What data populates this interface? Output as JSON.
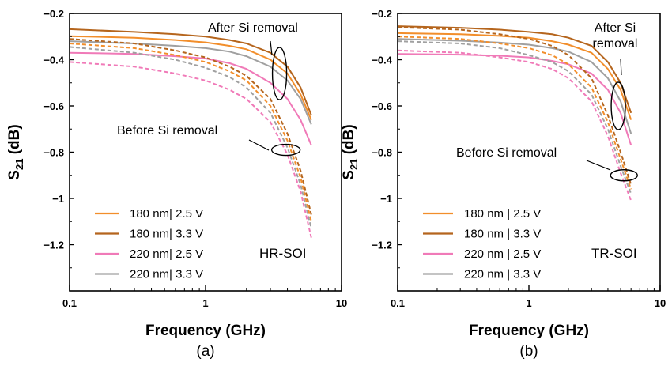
{
  "colors": {
    "orange": "#f28e2b",
    "brown": "#b5651d",
    "pink": "#f07ab8",
    "gray": "#a0a0a0",
    "axis": "#000000"
  },
  "chart_data": [
    {
      "type": "line",
      "caption": "(a)",
      "xlabel": "Frequency (GHz)",
      "ylabel": "S21 (dB)",
      "ylabel_main": "S",
      "ylabel_sub": "21",
      "ylabel_rest": " (dB)",
      "xscale": "log",
      "xlim": [
        0.1,
        10
      ],
      "ylim": [
        -1.4,
        -0.2
      ],
      "xticks": [
        0.1,
        1,
        10
      ],
      "xtick_labels": [
        "0.1",
        "1",
        "10"
      ],
      "yticks": [
        -0.2,
        -0.4,
        -0.6,
        -0.8,
        -1,
        -1.2
      ],
      "ytick_labels": [
        "−0.2",
        "−0.4",
        "−0.6",
        "−0.8",
        "−1",
        "−1.2"
      ],
      "label": "HR-SOI",
      "legend_position": "bottom-left",
      "legend": [
        {
          "text": "180 nm| 2.5 V",
          "color": "#f28e2b"
        },
        {
          "text": "180 nm| 3.3 V",
          "color": "#b5651d"
        },
        {
          "text": "220 nm| 2.5 V",
          "color": "#f07ab8"
        },
        {
          "text": "220 nm| 3.3 V",
          "color": "#a0a0a0"
        }
      ],
      "annotations": [
        {
          "text": "After Si removal",
          "ellipse": {
            "x": 3.5,
            "y": -0.46
          }
        },
        {
          "text": "Before Si removal",
          "ellipse": {
            "x": 3.9,
            "y": -0.79
          }
        }
      ],
      "series": [
        {
          "color": "#b5651d",
          "style": "solid",
          "points": [
            [
              0.1,
              -0.268
            ],
            [
              0.3,
              -0.28
            ],
            [
              0.6,
              -0.29
            ],
            [
              1,
              -0.3
            ],
            [
              1.5,
              -0.315
            ],
            [
              2,
              -0.33
            ],
            [
              3,
              -0.37
            ],
            [
              4,
              -0.43
            ],
            [
              5,
              -0.52
            ],
            [
              6,
              -0.64
            ]
          ]
        },
        {
          "color": "#f28e2b",
          "style": "solid",
          "points": [
            [
              0.1,
              -0.298
            ],
            [
              0.3,
              -0.305
            ],
            [
              0.6,
              -0.315
            ],
            [
              1,
              -0.325
            ],
            [
              1.5,
              -0.34
            ],
            [
              2,
              -0.355
            ],
            [
              3,
              -0.4
            ],
            [
              4,
              -0.46
            ],
            [
              5,
              -0.55
            ],
            [
              6,
              -0.66
            ]
          ]
        },
        {
          "color": "#a0a0a0",
          "style": "solid",
          "points": [
            [
              0.1,
              -0.32
            ],
            [
              0.3,
              -0.33
            ],
            [
              0.6,
              -0.34
            ],
            [
              1,
              -0.35
            ],
            [
              1.5,
              -0.365
            ],
            [
              2,
              -0.385
            ],
            [
              3,
              -0.43
            ],
            [
              4,
              -0.49
            ],
            [
              5,
              -0.57
            ],
            [
              6,
              -0.68
            ]
          ]
        },
        {
          "color": "#f07ab8",
          "style": "solid",
          "points": [
            [
              0.1,
              -0.37
            ],
            [
              0.3,
              -0.375
            ],
            [
              0.6,
              -0.385
            ],
            [
              1,
              -0.395
            ],
            [
              1.5,
              -0.415
            ],
            [
              2,
              -0.44
            ],
            [
              3,
              -0.5
            ],
            [
              4,
              -0.57
            ],
            [
              5,
              -0.66
            ],
            [
              6,
              -0.77
            ]
          ]
        },
        {
          "color": "#b5651d",
          "style": "dashed",
          "points": [
            [
              0.1,
              -0.31
            ],
            [
              0.3,
              -0.33
            ],
            [
              0.6,
              -0.36
            ],
            [
              1,
              -0.39
            ],
            [
              1.5,
              -0.43
            ],
            [
              2,
              -0.47
            ],
            [
              3,
              -0.57
            ],
            [
              4,
              -0.72
            ],
            [
              5,
              -0.88
            ],
            [
              6,
              -1.07
            ]
          ]
        },
        {
          "color": "#f28e2b",
          "style": "dashed",
          "points": [
            [
              0.1,
              -0.33
            ],
            [
              0.3,
              -0.35
            ],
            [
              0.6,
              -0.38
            ],
            [
              1,
              -0.41
            ],
            [
              1.5,
              -0.45
            ],
            [
              2,
              -0.49
            ],
            [
              3,
              -0.6
            ],
            [
              4,
              -0.75
            ],
            [
              5,
              -0.91
            ],
            [
              6,
              -1.1
            ]
          ]
        },
        {
          "color": "#a0a0a0",
          "style": "dashed",
          "points": [
            [
              0.1,
              -0.345
            ],
            [
              0.3,
              -0.37
            ],
            [
              0.6,
              -0.4
            ],
            [
              1,
              -0.435
            ],
            [
              1.5,
              -0.475
            ],
            [
              2,
              -0.52
            ],
            [
              3,
              -0.63
            ],
            [
              4,
              -0.78
            ],
            [
              5,
              -0.94
            ],
            [
              6,
              -1.13
            ]
          ]
        },
        {
          "color": "#f07ab8",
          "style": "dashed",
          "points": [
            [
              0.1,
              -0.41
            ],
            [
              0.3,
              -0.43
            ],
            [
              0.6,
              -0.46
            ],
            [
              1,
              -0.49
            ],
            [
              1.5,
              -0.53
            ],
            [
              2,
              -0.57
            ],
            [
              3,
              -0.67
            ],
            [
              4,
              -0.81
            ],
            [
              5,
              -0.97
            ],
            [
              6,
              -1.17
            ]
          ]
        }
      ]
    },
    {
      "type": "line",
      "caption": "(b)",
      "xlabel": "Frequency (GHz)",
      "ylabel": "S21 (dB)",
      "ylabel_main": "S",
      "ylabel_sub": "21",
      "ylabel_rest": " (dB)",
      "xscale": "log",
      "xlim": [
        0.1,
        10
      ],
      "ylim": [
        -1.4,
        -0.2
      ],
      "xticks": [
        0.1,
        1,
        10
      ],
      "xtick_labels": [
        "0.1",
        "1",
        "10"
      ],
      "yticks": [
        -0.2,
        -0.4,
        -0.6,
        -0.8,
        -1,
        -1.2
      ],
      "ytick_labels": [
        "−0.2",
        "−0.4",
        "−0.6",
        "−0.8",
        "−1",
        "−1.2"
      ],
      "label": "TR-SOI",
      "legend_position": "bottom-left",
      "legend": [
        {
          "text": "180 nm | 2.5 V",
          "color": "#f28e2b"
        },
        {
          "text": "180 nm | 3.3 V",
          "color": "#b5651d"
        },
        {
          "text": "220 nm | 2.5 V",
          "color": "#f07ab8"
        },
        {
          "text": "220 nm | 3.3 V",
          "color": "#a0a0a0"
        }
      ],
      "annotations": [
        {
          "text": "After Si removal",
          "ellipse": {
            "x": 4.8,
            "y": -0.6
          }
        },
        {
          "text": "Before Si removal",
          "ellipse": {
            "x": 5.3,
            "y": -0.9
          }
        }
      ],
      "series": [
        {
          "color": "#b5651d",
          "style": "solid",
          "points": [
            [
              0.1,
              -0.255
            ],
            [
              0.3,
              -0.262
            ],
            [
              0.6,
              -0.27
            ],
            [
              1,
              -0.28
            ],
            [
              1.5,
              -0.29
            ],
            [
              2,
              -0.305
            ],
            [
              3,
              -0.34
            ],
            [
              4,
              -0.41
            ],
            [
              5,
              -0.5
            ],
            [
              6,
              -0.63
            ]
          ]
        },
        {
          "color": "#f28e2b",
          "style": "solid",
          "points": [
            [
              0.1,
              -0.285
            ],
            [
              0.3,
              -0.29
            ],
            [
              0.6,
              -0.297
            ],
            [
              1,
              -0.305
            ],
            [
              1.5,
              -0.32
            ],
            [
              2,
              -0.335
            ],
            [
              3,
              -0.37
            ],
            [
              4,
              -0.44
            ],
            [
              5,
              -0.53
            ],
            [
              6,
              -0.66
            ]
          ]
        },
        {
          "color": "#a0a0a0",
          "style": "solid",
          "points": [
            [
              0.1,
              -0.31
            ],
            [
              0.3,
              -0.318
            ],
            [
              0.6,
              -0.326
            ],
            [
              1,
              -0.335
            ],
            [
              1.5,
              -0.35
            ],
            [
              2,
              -0.365
            ],
            [
              3,
              -0.41
            ],
            [
              4,
              -0.48
            ],
            [
              5,
              -0.58
            ],
            [
              6,
              -0.72
            ]
          ]
        },
        {
          "color": "#f07ab8",
          "style": "solid",
          "points": [
            [
              0.1,
              -0.375
            ],
            [
              0.3,
              -0.378
            ],
            [
              0.6,
              -0.383
            ],
            [
              1,
              -0.39
            ],
            [
              1.5,
              -0.405
            ],
            [
              2,
              -0.42
            ],
            [
              3,
              -0.46
            ],
            [
              4,
              -0.53
            ],
            [
              5,
              -0.63
            ],
            [
              6,
              -0.77
            ]
          ]
        },
        {
          "color": "#b5651d",
          "style": "dashed",
          "points": [
            [
              0.1,
              -0.26
            ],
            [
              0.3,
              -0.27
            ],
            [
              0.6,
              -0.29
            ],
            [
              1,
              -0.31
            ],
            [
              1.5,
              -0.34
            ],
            [
              2,
              -0.38
            ],
            [
              3,
              -0.48
            ],
            [
              4,
              -0.64
            ],
            [
              5,
              -0.8
            ],
            [
              6,
              -0.94
            ]
          ]
        },
        {
          "color": "#f28e2b",
          "style": "dashed",
          "points": [
            [
              0.1,
              -0.3
            ],
            [
              0.3,
              -0.31
            ],
            [
              0.6,
              -0.33
            ],
            [
              1,
              -0.35
            ],
            [
              1.5,
              -0.38
            ],
            [
              2,
              -0.42
            ],
            [
              3,
              -0.52
            ],
            [
              4,
              -0.67
            ],
            [
              5,
              -0.83
            ],
            [
              6,
              -0.96
            ]
          ]
        },
        {
          "color": "#a0a0a0",
          "style": "dashed",
          "points": [
            [
              0.1,
              -0.32
            ],
            [
              0.3,
              -0.33
            ],
            [
              0.6,
              -0.35
            ],
            [
              1,
              -0.38
            ],
            [
              1.5,
              -0.41
            ],
            [
              2,
              -0.45
            ],
            [
              3,
              -0.55
            ],
            [
              4,
              -0.7
            ],
            [
              5,
              -0.86
            ],
            [
              6,
              -0.98
            ]
          ]
        },
        {
          "color": "#f07ab8",
          "style": "dashed",
          "points": [
            [
              0.1,
              -0.36
            ],
            [
              0.3,
              -0.37
            ],
            [
              0.6,
              -0.39
            ],
            [
              1,
              -0.41
            ],
            [
              1.5,
              -0.44
            ],
            [
              2,
              -0.48
            ],
            [
              3,
              -0.58
            ],
            [
              4,
              -0.73
            ],
            [
              5,
              -0.89
            ],
            [
              6,
              -1.01
            ]
          ]
        }
      ]
    }
  ]
}
